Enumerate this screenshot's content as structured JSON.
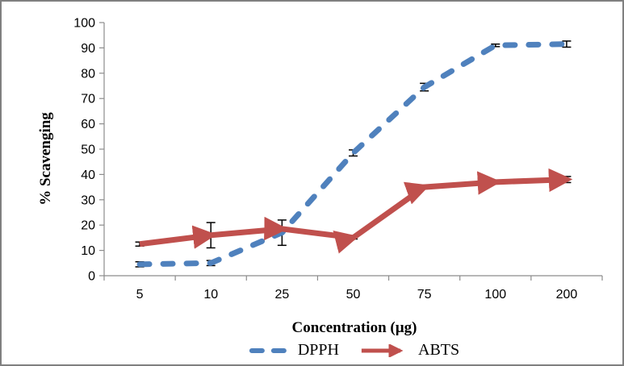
{
  "chart_data": {
    "type": "line",
    "title": "",
    "xlabel": "Concentration (µg)",
    "ylabel": "% Scavenging",
    "categories": [
      "5",
      "10",
      "25",
      "50",
      "75",
      "100",
      "200"
    ],
    "ylim": [
      0,
      100
    ],
    "yticks": [
      0,
      10,
      20,
      30,
      40,
      50,
      60,
      70,
      80,
      90,
      100
    ],
    "grid": false,
    "legend_position": "bottom",
    "axis_color": "#8c8c8c",
    "error_bar_color": "#000000",
    "series": [
      {
        "name": "DPPH",
        "color": "#4F81BD",
        "style": "dashed",
        "marker": "none",
        "values": [
          4.5,
          5,
          17,
          48.5,
          74.5,
          91,
          91.5
        ],
        "error": [
          1,
          1,
          5,
          1.2,
          1.5,
          0.5,
          1.2
        ]
      },
      {
        "name": "ABTS",
        "color": "#C0504D",
        "style": "solid",
        "marker": "arrow",
        "values": [
          12.5,
          16,
          18.5,
          15,
          35,
          37,
          38
        ],
        "error": [
          0.8,
          5,
          0,
          0.5,
          0.5,
          0.5,
          1.2
        ]
      }
    ]
  },
  "legend": {
    "items": [
      {
        "label": "DPPH"
      },
      {
        "label": "ABTS"
      }
    ]
  }
}
